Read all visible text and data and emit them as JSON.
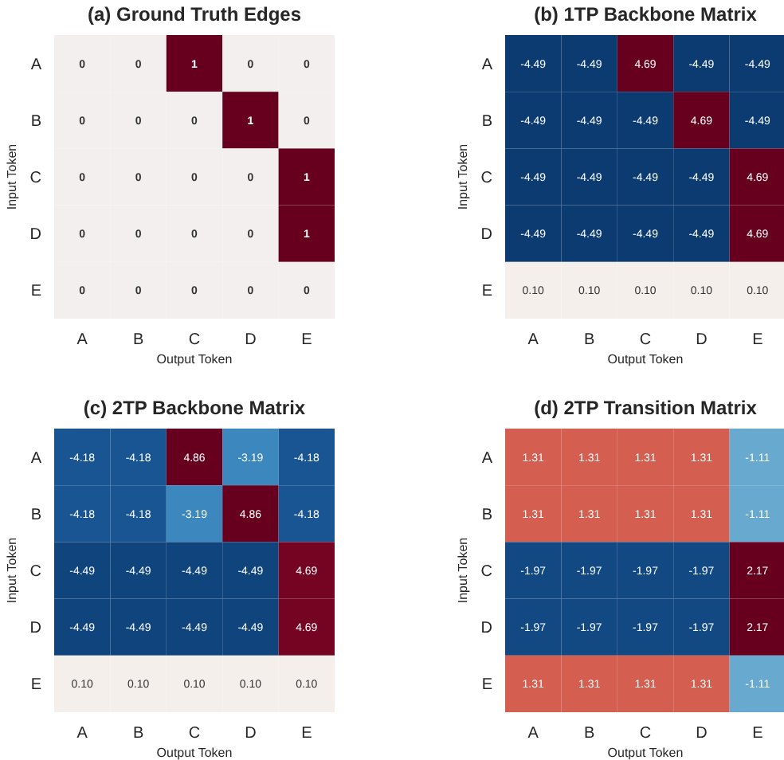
{
  "chart_data": [
    {
      "type": "heatmap",
      "data_labels": true,
      "title": "(a) Ground Truth Edges",
      "xlabel": "Output Token",
      "ylabel": "Input Token",
      "categories": [
        "A",
        "B",
        "C",
        "D",
        "E"
      ],
      "y_categories": [
        "A",
        "B",
        "C",
        "D",
        "E"
      ],
      "cells": [
        [
          0,
          0,
          1,
          0,
          0
        ],
        [
          0,
          0,
          0,
          1,
          0
        ],
        [
          0,
          0,
          0,
          0,
          1
        ],
        [
          0,
          0,
          0,
          0,
          1
        ],
        [
          0,
          0,
          0,
          0,
          0
        ]
      ]
    },
    {
      "type": "heatmap",
      "title": "(b) 1TP Backbone Matrix",
      "xlabel": "Output Token",
      "ylabel": "Input Token",
      "categories": [
        "A",
        "B",
        "C",
        "D",
        "E"
      ],
      "y_categories": [
        "A",
        "B",
        "C",
        "D",
        "E"
      ],
      "cells": [
        [
          -4.49,
          -4.49,
          4.69,
          -4.49,
          -4.49
        ],
        [
          -4.49,
          -4.49,
          -4.49,
          4.69,
          -4.49
        ],
        [
          -4.49,
          -4.49,
          -4.49,
          -4.49,
          4.69
        ],
        [
          -4.49,
          -4.49,
          -4.49,
          -4.49,
          4.69
        ],
        [
          0.1,
          0.1,
          0.1,
          0.1,
          0.1
        ]
      ],
      "cell_labels": [
        [
          "-4.49",
          "-4.49",
          "4.69",
          "-4.49",
          "-4.49"
        ],
        [
          "-4.49",
          "-4.49",
          "-4.49",
          "4.69",
          "-4.49"
        ],
        [
          "-4.49",
          "-4.49",
          "-4.49",
          "-4.49",
          "4.69"
        ],
        [
          "-4.49",
          "-4.49",
          "-4.49",
          "-4.49",
          "4.69"
        ],
        [
          "0.10",
          "0.10",
          "0.10",
          "0.10",
          "0.10"
        ]
      ]
    },
    {
      "type": "heatmap",
      "title": "(c) 2TP Backbone Matrix",
      "xlabel": "Output Token",
      "ylabel": "Input Token",
      "categories": [
        "A",
        "B",
        "C",
        "D",
        "E"
      ],
      "y_categories": [
        "A",
        "B",
        "C",
        "D",
        "E"
      ],
      "cells": [
        [
          -4.18,
          -4.18,
          4.86,
          -3.19,
          -4.18
        ],
        [
          -4.18,
          -4.18,
          -3.19,
          4.86,
          -4.18
        ],
        [
          -4.49,
          -4.49,
          -4.49,
          -4.49,
          4.69
        ],
        [
          -4.49,
          -4.49,
          -4.49,
          -4.49,
          4.69
        ],
        [
          0.1,
          0.1,
          0.1,
          0.1,
          0.1
        ]
      ],
      "cell_labels": [
        [
          "-4.18",
          "-4.18",
          "4.86",
          "-3.19",
          "-4.18"
        ],
        [
          "-4.18",
          "-4.18",
          "-3.19",
          "4.86",
          "-4.18"
        ],
        [
          "-4.49",
          "-4.49",
          "-4.49",
          "-4.49",
          "4.69"
        ],
        [
          "-4.49",
          "-4.49",
          "-4.49",
          "-4.49",
          "4.69"
        ],
        [
          "0.10",
          "0.10",
          "0.10",
          "0.10",
          "0.10"
        ]
      ]
    },
    {
      "type": "heatmap",
      "data_labels": true,
      "title": "(d) 2TP Transition Matrix",
      "xlabel": "Output Token",
      "ylabel": "Input Token",
      "categories": [
        "A",
        "B",
        "C",
        "D",
        "E"
      ],
      "y_categories": [
        "A",
        "B",
        "C",
        "D",
        "E"
      ],
      "cells": [
        [
          1.31,
          1.31,
          1.31,
          1.31,
          -1.11
        ],
        [
          1.31,
          1.31,
          1.31,
          1.31,
          -1.11
        ],
        [
          -1.97,
          -1.97,
          -1.97,
          -1.97,
          2.17
        ],
        [
          -1.97,
          -1.97,
          -1.97,
          -1.97,
          2.17
        ],
        [
          1.31,
          1.31,
          1.31,
          1.31,
          -1.11
        ]
      ]
    }
  ]
}
